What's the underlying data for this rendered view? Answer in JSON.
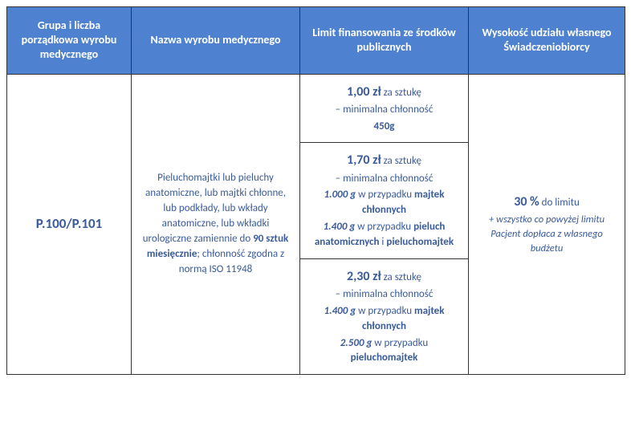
{
  "colors": {
    "header_bg": "#4f81d1",
    "header_text": "#ffffff",
    "body_text": "#3a5b9a",
    "border": "#333333",
    "page_bg": "#ffffff"
  },
  "headers": {
    "col1": "Grupa i liczba porządkowa wyrobu medycznego",
    "col2": "Nazwa wyrobu medycznego",
    "col3": "Limit finansowania ze środków publicznych",
    "col4": "Wysokość udziału własnego Świadczeniobiorcy"
  },
  "row": {
    "code": "P.100/P.101",
    "name": {
      "pre": "Pieluchomajtki lub pieluchy anatomiczne, lub majtki chłonne, lub podkłady, lub wkłady anatomiczne, lub wkładki urologiczne zamiennie do ",
      "qty": "90 sztuk miesięcznie",
      "post": "; chłonność zgodna z normą ISO 11948"
    },
    "limits": {
      "l1": {
        "price": "1,00 zł",
        "unit": " za sztukę",
        "line2": "– minimalna chłonność",
        "val": "450g"
      },
      "l2": {
        "price": "1,70 zł",
        "unit": " za sztukę",
        "line2": "– minimalna chłonność",
        "v1": "1.000 g",
        "t1": " w przypadku ",
        "p1": "majtek chłonnych",
        "v2": "1.400 g",
        "t2": " w przypadku ",
        "p2a": "pieluch anatomicznych",
        "and": " i ",
        "p2b": "pieluchomajtek"
      },
      "l3": {
        "price": "2,30 zł",
        "unit": " za sztukę",
        "line2": "– minimalna chłonność",
        "v1": "1.400 g",
        "t1": " w przypadku ",
        "p1": "majtek chłonnych",
        "v2": "2.500 g",
        "t2": " w przypadku ",
        "p2": "pieluchomajtek"
      }
    },
    "share": {
      "pct": "30 %",
      "tail": " do limitu",
      "note": "+ wszystko co powyżej limitu Pacjent dopłaca z własnego budżetu"
    }
  }
}
